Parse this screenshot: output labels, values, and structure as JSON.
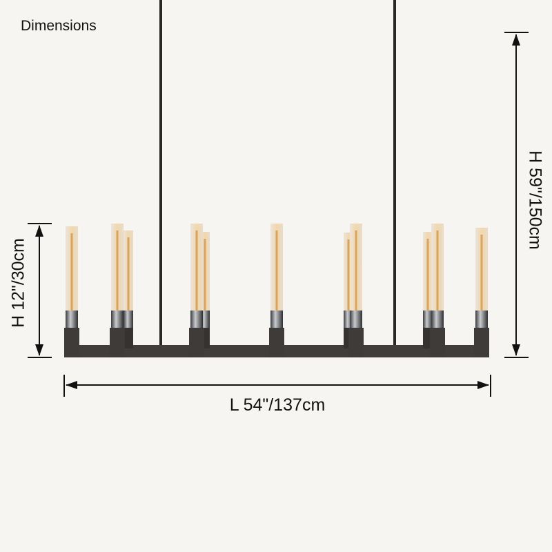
{
  "title": "Dimensions",
  "dimensions": {
    "length": "L 54\"/137cm",
    "height": "H 12\"/30cm",
    "total_height": "H 59\"/150cm"
  },
  "colors": {
    "background": "#f7f5f1",
    "metal": "#3e3b38",
    "glass": "#f0d9b5",
    "filament": "#d9a460",
    "chrome": "#6f7276"
  }
}
